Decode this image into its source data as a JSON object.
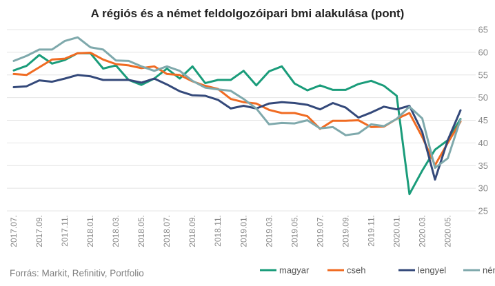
{
  "chart_data": {
    "type": "line",
    "title": "A régiós és a német feldolgozóipari bmi alakulása (pont)",
    "source": "Forrás: Markit, Refinitiv, Portfolio",
    "ylim": [
      25,
      65
    ],
    "yticks": [
      25,
      30,
      35,
      40,
      45,
      50,
      55,
      60,
      65
    ],
    "y_axis_position": "right",
    "grid": true,
    "legend_position": "bottom-right",
    "x": [
      "2017.07.",
      "2017.08.",
      "2017.09.",
      "2017.10.",
      "2017.11.",
      "2017.12.",
      "2018.01.",
      "2018.02.",
      "2018.03.",
      "2018.04.",
      "2018.05.",
      "2018.06.",
      "2018.07.",
      "2018.08.",
      "2018.09.",
      "2018.10.",
      "2018.11.",
      "2018.12.",
      "2019.01.",
      "2019.02.",
      "2019.03.",
      "2019.04.",
      "2019.05.",
      "2019.06.",
      "2019.07.",
      "2019.08.",
      "2019.09.",
      "2019.10.",
      "2019.11.",
      "2019.12.",
      "2020.01.",
      "2020.02.",
      "2020.03.",
      "2020.04.",
      "2020.05.",
      "2020.06."
    ],
    "xtick_labels": [
      "2017.07.",
      "2017.09.",
      "2017.11.",
      "2018.01.",
      "2018.03.",
      "2018.05.",
      "2018.07.",
      "2018.09.",
      "2018.11.",
      "2019.01.",
      "2019.03.",
      "2019.05.",
      "2019.07.",
      "2019.09.",
      "2019.11.",
      "2020.01.",
      "2020.03.",
      "2020.05."
    ],
    "series": [
      {
        "name": "magyar",
        "color": "#1a9c7a",
        "values": [
          56.0,
          57.0,
          59.4,
          57.5,
          58.3,
          59.8,
          59.8,
          56.4,
          57.1,
          53.9,
          52.8,
          54.2,
          56.4,
          54.2,
          56.9,
          53.2,
          53.9,
          53.9,
          55.9,
          52.7,
          55.8,
          56.9,
          53.1,
          51.6,
          52.7,
          51.7,
          51.7,
          53.0,
          53.7,
          52.6,
          50.4,
          28.7,
          33.9,
          38.5,
          40.6,
          45.3
        ]
      },
      {
        "name": "cseh",
        "color": "#f06b22",
        "values": [
          55.2,
          55.0,
          56.7,
          58.4,
          58.6,
          59.8,
          59.9,
          58.4,
          57.4,
          57.1,
          56.5,
          56.9,
          55.2,
          55.0,
          53.6,
          52.6,
          51.9,
          49.7,
          49.0,
          48.7,
          47.3,
          46.6,
          46.6,
          45.9,
          43.1,
          44.9,
          44.9,
          45.0,
          43.5,
          43.6,
          45.3,
          46.6,
          41.3,
          35.1,
          40.0,
          44.7
        ]
      },
      {
        "name": "lengyel",
        "color": "#34497a",
        "values": [
          52.3,
          52.5,
          53.8,
          53.5,
          54.2,
          55.0,
          54.7,
          53.9,
          53.9,
          53.9,
          53.3,
          54.2,
          52.9,
          51.4,
          50.5,
          50.4,
          49.5,
          47.6,
          48.2,
          47.6,
          48.7,
          49.0,
          48.8,
          48.4,
          47.4,
          48.8,
          47.8,
          45.6,
          46.7,
          48.0,
          47.4,
          48.2,
          42.4,
          31.9,
          40.6,
          47.2
        ]
      },
      {
        "name": "német",
        "color": "#7fa9ac",
        "values": [
          58.1,
          59.2,
          60.6,
          60.6,
          62.5,
          63.3,
          61.1,
          60.6,
          58.2,
          58.1,
          56.9,
          55.9,
          56.9,
          55.9,
          53.7,
          52.2,
          51.8,
          51.5,
          49.7,
          47.6,
          44.1,
          44.4,
          44.3,
          45.0,
          43.2,
          43.5,
          41.7,
          42.1,
          44.1,
          43.7,
          45.3,
          48.0,
          45.4,
          34.5,
          36.6,
          45.2
        ]
      }
    ]
  }
}
